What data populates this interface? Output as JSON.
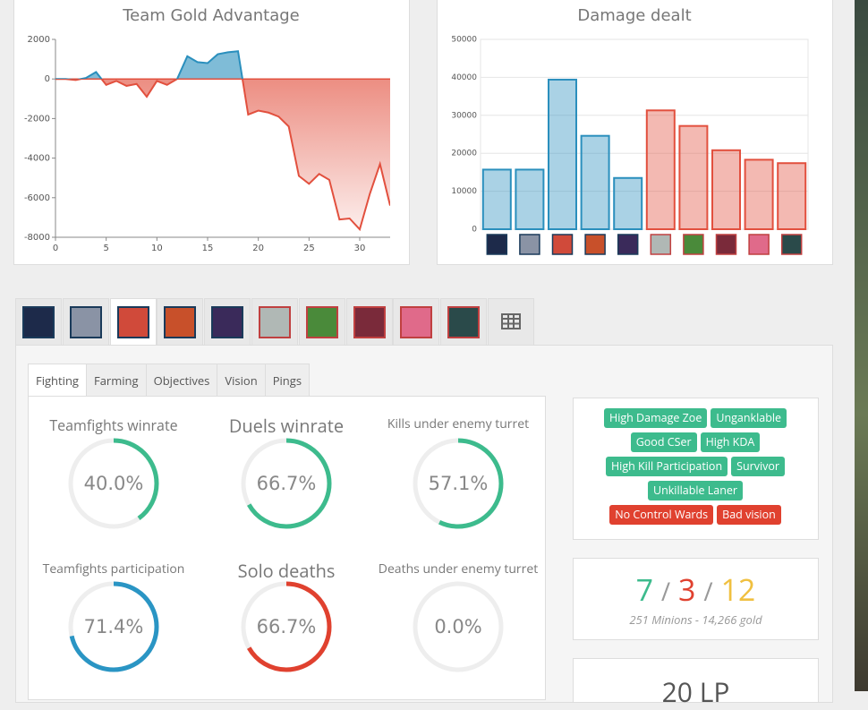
{
  "chart_data": [
    {
      "type": "line",
      "title": "Team Gold Advantage",
      "x": [
        0,
        1,
        2,
        3,
        4,
        5,
        6,
        7,
        8,
        9,
        10,
        11,
        12,
        13,
        14,
        15,
        16,
        17,
        18,
        19,
        20,
        21,
        22,
        23,
        24,
        25,
        26,
        27,
        28,
        29,
        30,
        31,
        32,
        33
      ],
      "values": [
        0,
        0,
        -50,
        50,
        350,
        -300,
        -100,
        -350,
        -250,
        -900,
        -100,
        -300,
        0,
        1150,
        850,
        800,
        1250,
        1350,
        1400,
        -1800,
        -1600,
        -1700,
        -1900,
        -2400,
        -4900,
        -5300,
        -4800,
        -5100,
        -7100,
        -7050,
        -7600,
        -5800,
        -4300,
        -6400
      ],
      "positive_color": "#2a8fbd",
      "negative_color": "#e2503e",
      "xlim": [
        0,
        33
      ],
      "xticks": [
        0,
        5,
        10,
        15,
        20,
        25,
        30
      ],
      "ylim": [
        -8000,
        2000
      ],
      "yticks": [
        2000,
        0,
        -2000,
        -4000,
        -6000,
        -8000
      ],
      "grid": false
    },
    {
      "type": "bar",
      "title": "Damage dealt",
      "categories": [
        null,
        null,
        null,
        null,
        null,
        null,
        null,
        null,
        null,
        null
      ],
      "values": [
        15700,
        15700,
        39400,
        24600,
        13500,
        31300,
        27200,
        20800,
        18300,
        17400
      ],
      "colors": [
        "#2a8fbd",
        "#2a8fbd",
        "#2a8fbd",
        "#2a8fbd",
        "#2a8fbd",
        "#e2503e",
        "#e2503e",
        "#e2503e",
        "#e2503e",
        "#e2503e"
      ],
      "ylim": [
        0,
        50000
      ],
      "yticks": [
        0,
        10000,
        20000,
        30000,
        40000,
        50000
      ],
      "grid": true
    }
  ],
  "subtabs": [
    "Fighting",
    "Farming",
    "Objectives",
    "Vision",
    "Pings"
  ],
  "stats": [
    {
      "title": "Teamfights winrate",
      "value": 40.0,
      "label": "40.0%",
      "color": "#3dbb8d"
    },
    {
      "title": "Duels winrate",
      "value": 66.7,
      "label": "66.7%",
      "color": "#3dbb8d"
    },
    {
      "title": "Kills under enemy turret",
      "value": 57.1,
      "label": "57.1%",
      "color": "#3dbb8d"
    },
    {
      "title": "Teamfights participation",
      "value": 71.4,
      "label": "71.4%",
      "color": "#2a95c4"
    },
    {
      "title": "Solo deaths",
      "value": 66.7,
      "label": "66.7%",
      "color": "#e0412f"
    },
    {
      "title": "Deaths under enemy turret",
      "value": 0.0,
      "label": "0.0%",
      "color": "#e0412f"
    }
  ],
  "tags": [
    {
      "text": "High Damage Zoe",
      "color": "#3dbb8d"
    },
    {
      "text": "Unganklable",
      "color": "#3dbb8d"
    },
    {
      "text": "Good CSer",
      "color": "#3dbb8d"
    },
    {
      "text": "High KDA",
      "color": "#3dbb8d"
    },
    {
      "text": "High Kill Participation",
      "color": "#3dbb8d"
    },
    {
      "text": "Survivor",
      "color": "#3dbb8d"
    },
    {
      "text": "Unkillable Laner",
      "color": "#3dbb8d"
    },
    {
      "text": "No Control Wards",
      "color": "#e0412f"
    },
    {
      "text": "Bad vision",
      "color": "#e0412f"
    }
  ],
  "kda": {
    "kills": 7,
    "deaths": 3,
    "assists": 12,
    "separator": "/"
  },
  "summary": "251 Minions - 14,266 gold",
  "lp": "20 LP"
}
